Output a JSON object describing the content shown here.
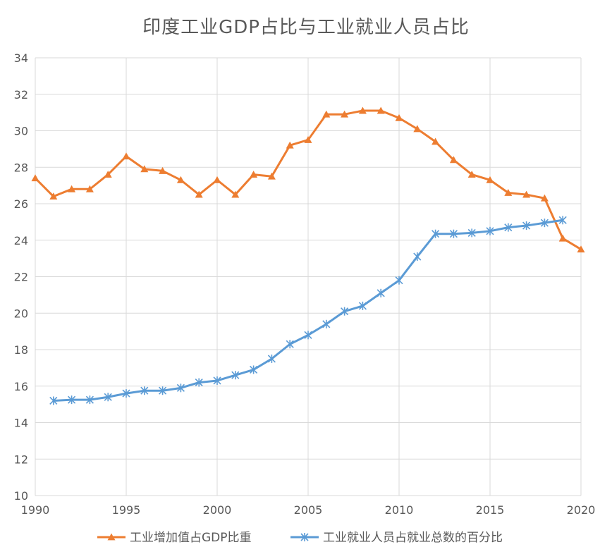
{
  "chart_data": {
    "type": "line",
    "title": "印度工业GDP占比与工业就业人员占比",
    "xlabel": "",
    "ylabel": "",
    "xlim": [
      1990,
      2020
    ],
    "ylim": [
      10,
      34
    ],
    "x_ticks": [
      "1990",
      "1995",
      "2000",
      "2005",
      "2010",
      "2015",
      "2020"
    ],
    "y_ticks": [
      "10",
      "12",
      "14",
      "16",
      "18",
      "20",
      "22",
      "24",
      "26",
      "28",
      "30",
      "32",
      "34"
    ],
    "grid": true,
    "legend_position": "bottom",
    "series": [
      {
        "name": "工业增加值占GDP比重",
        "color": "#ED7D31",
        "marker": "triangle",
        "x": [
          1990,
          1991,
          1992,
          1993,
          1994,
          1995,
          1996,
          1997,
          1998,
          1999,
          2000,
          2001,
          2002,
          2003,
          2004,
          2005,
          2006,
          2007,
          2008,
          2009,
          2010,
          2011,
          2012,
          2013,
          2014,
          2015,
          2016,
          2017,
          2018,
          2019,
          2020
        ],
        "values": [
          27.4,
          26.4,
          26.8,
          26.8,
          27.6,
          28.6,
          27.9,
          27.8,
          27.3,
          26.5,
          27.3,
          26.5,
          27.6,
          27.5,
          29.2,
          29.5,
          30.9,
          30.9,
          31.1,
          31.1,
          30.7,
          30.1,
          29.4,
          28.4,
          27.6,
          27.3,
          26.6,
          26.5,
          26.3,
          24.1,
          23.5
        ]
      },
      {
        "name": "工业就业人员占就业总数的百分比",
        "color": "#5B9BD5",
        "marker": "star",
        "x": [
          1991,
          1992,
          1993,
          1994,
          1995,
          1996,
          1997,
          1998,
          1999,
          2000,
          2001,
          2002,
          2003,
          2004,
          2005,
          2006,
          2007,
          2008,
          2009,
          2010,
          2011,
          2012,
          2013,
          2014,
          2015,
          2016,
          2017,
          2018,
          2019
        ],
        "values": [
          15.2,
          15.25,
          15.25,
          15.4,
          15.6,
          15.75,
          15.75,
          15.9,
          16.2,
          16.3,
          16.6,
          16.9,
          17.5,
          18.3,
          18.8,
          19.4,
          20.1,
          20.4,
          21.1,
          21.8,
          23.1,
          24.35,
          24.35,
          24.4,
          24.5,
          24.7,
          24.8,
          24.95,
          25.1
        ]
      }
    ]
  }
}
